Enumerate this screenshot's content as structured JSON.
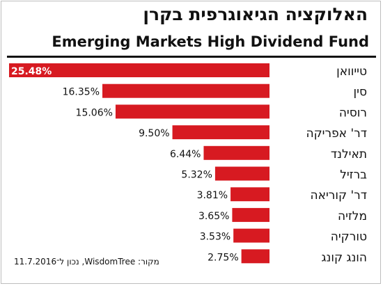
{
  "header": {
    "title_he": "האלוקציה הגיאוגרפית בקרן",
    "title_en": "Emerging Markets High Dividend Fund"
  },
  "footer": {
    "source": "מקור: WisdomTree, נכון ל־11.7.2016"
  },
  "colors": {
    "bar": "#d71a21",
    "bar_label": "#111111",
    "bar_label_inside": "#ffffff"
  },
  "chart_data": {
    "type": "bar",
    "orientation": "horizontal",
    "categories": [
      "טייוואן",
      "סין",
      "רוסיה",
      "דר' אפריקה",
      "תאילנד",
      "ברזיל",
      "דר' קוריאה",
      "מלזיה",
      "טורקיה",
      "הונג קונג"
    ],
    "values": [
      25.48,
      16.35,
      15.06,
      9.5,
      6.44,
      5.32,
      3.81,
      3.65,
      3.53,
      2.75
    ],
    "labels": [
      "25.48%",
      "16.35%",
      "15.06%",
      "9.50%",
      "6.44%",
      "5.32%",
      "3.81%",
      "3.65%",
      "3.53%",
      "2.75%"
    ],
    "title": "האלוקציה הגיאוגרפית בקרן",
    "subtitle": "Emerging Markets High Dividend Fund",
    "unit": "%",
    "xlim": [
      0,
      25.48
    ],
    "grid": false,
    "legend": "none"
  }
}
